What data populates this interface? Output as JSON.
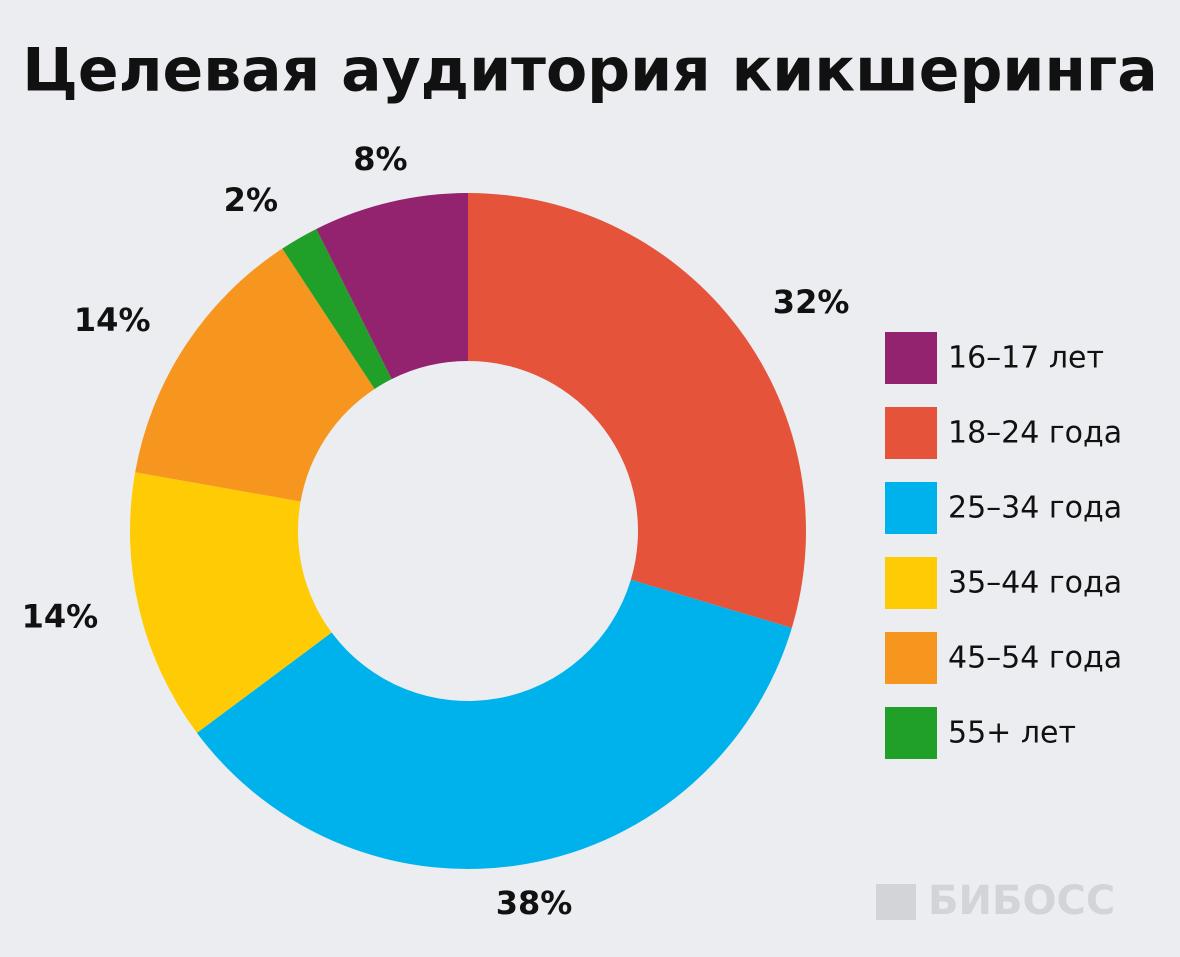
{
  "chart_data": {
    "type": "donut",
    "title": "Целевая аудитория кикшеринга",
    "categories": [
      "16–17 лет",
      "18–24 года",
      "25–34 года",
      "35–44 года",
      "45–54 года",
      "55+ лет"
    ],
    "values": [
      8,
      32,
      38,
      14,
      14,
      2
    ],
    "value_labels": [
      "8%",
      "32%",
      "38%",
      "14%",
      "14%",
      "2%"
    ],
    "colors": [
      "#93226f",
      "#e5533a",
      "#00b2ec",
      "#ffcb05",
      "#f7961f",
      "#20a029"
    ],
    "legend": "right",
    "watermark": "БИБОСС"
  }
}
